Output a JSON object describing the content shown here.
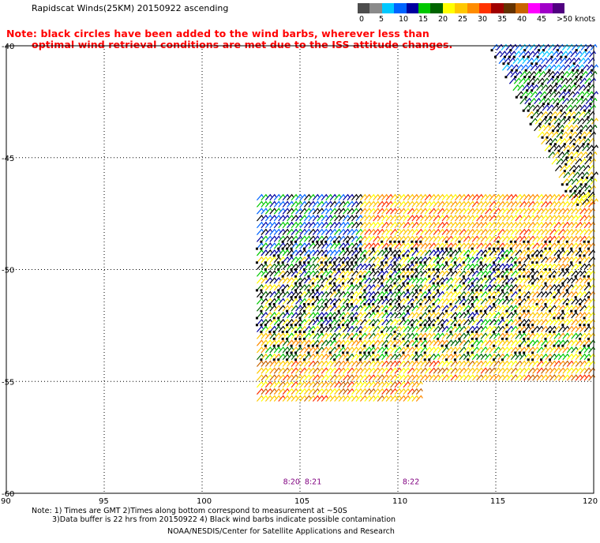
{
  "title": "Rapidscat Winds(25KM) 20150922 ascending",
  "note_line1": "Note: black circles have been added to the wind barbs, wherever less than",
  "note_line2": "optimal wind retrieval conditions are met due to the ISS attitude changes.",
  "legend": {
    "colors": [
      "#4d4d4d",
      "#8a8a8a",
      "#00c8ff",
      "#0064ff",
      "#0000a0",
      "#00c800",
      "#006400",
      "#ffff00",
      "#ffc800",
      "#ff8c00",
      "#ff3200",
      "#a00000",
      "#643200",
      "#c86400",
      "#ff00ff",
      "#a000c8",
      "#500080"
    ],
    "labels": [
      "0",
      "5",
      "10",
      "15",
      "20",
      "25",
      "30",
      "35",
      "40",
      "45",
      ">50 knots"
    ]
  },
  "map": {
    "lon_labels": [
      "90",
      "95",
      "100",
      "105",
      "110",
      "115",
      "120"
    ],
    "lat_labels": [
      "-40",
      "-45",
      "-50",
      "-55",
      "-60"
    ],
    "time_labels": [
      "8:20",
      "8:21",
      "8:22"
    ],
    "time_color": "#800080"
  },
  "footer_line1": "Note: 1) Times are GMT 2)Times along bottom correspond to measurement at ~50S",
  "footer_line2": "3)Data buffer is 22 hrs from 20150922 4) Black wind barbs indicate possible contamination",
  "footer_line3": "NOAA/NESDIS/Center for Satellite Applications and Research"
}
